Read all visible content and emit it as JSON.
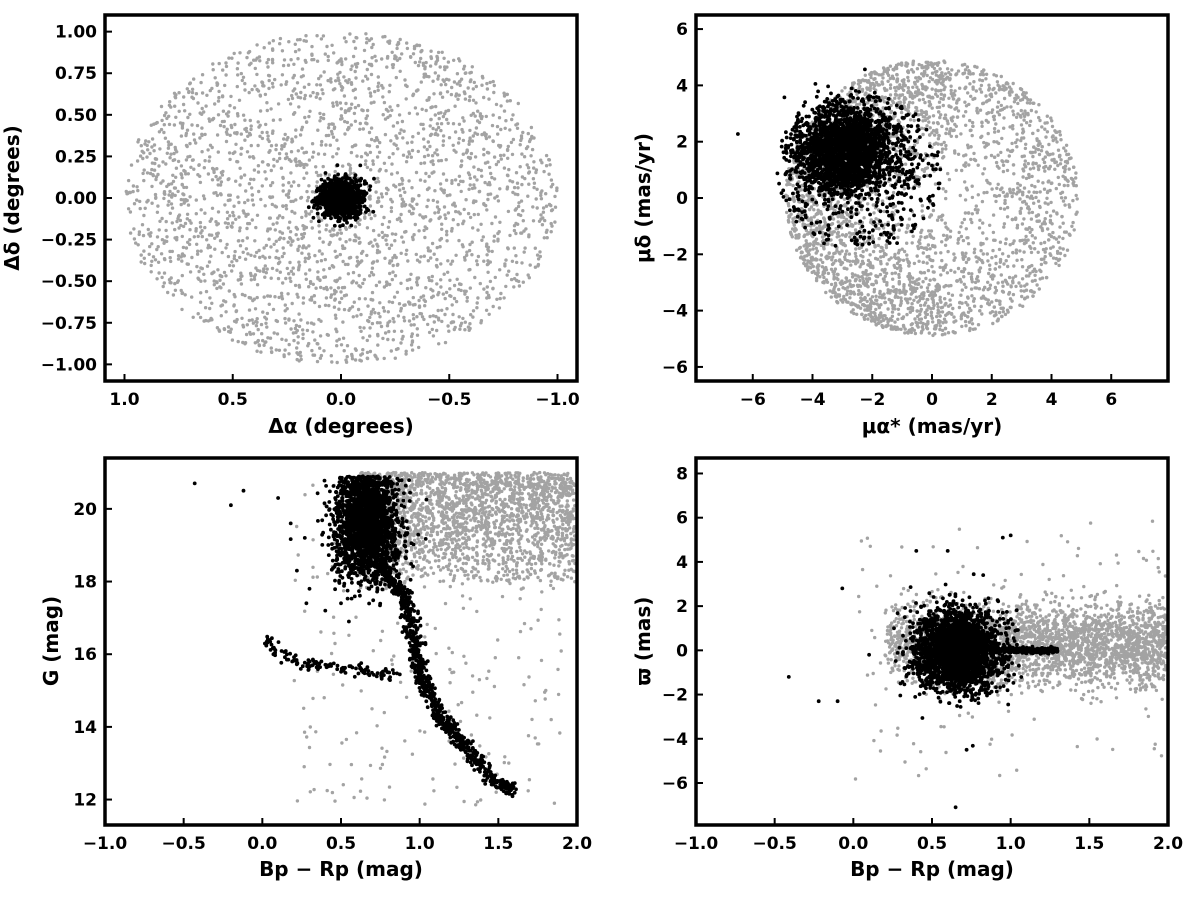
{
  "figure": {
    "background": "#ffffff",
    "colors": {
      "field": "#a3a3a3",
      "member": "#000000",
      "frame": "#000000"
    }
  },
  "chart_data": [
    {
      "id": "sky",
      "type": "scatter",
      "xlabel": "Δα (degrees)",
      "ylabel": "Δδ (degrees)",
      "xlim": [
        1.09,
        -1.09
      ],
      "ylim": [
        -1.1,
        1.1
      ],
      "x_ticks": [
        1.0,
        0.5,
        0.0,
        -0.5,
        -1.0
      ],
      "x_tick_labels": [
        "1.0",
        "0.5",
        "0.0",
        "−0.5",
        "−1.0"
      ],
      "y_ticks": [
        -1.0,
        -0.75,
        -0.5,
        -0.25,
        0.0,
        0.25,
        0.5,
        0.75,
        1.0
      ],
      "y_tick_labels": [
        "−1.00",
        "−0.75",
        "−0.50",
        "−0.25",
        "0.00",
        "0.25",
        "0.50",
        "0.75",
        "1.00"
      ],
      "grid": false,
      "series": [
        {
          "role": "field",
          "distribution": "uniform-disk",
          "center": [
            0,
            0
          ],
          "radius": 1.0,
          "count": 2600
        },
        {
          "role": "member",
          "distribution": "gaussian",
          "center": [
            0,
            0
          ],
          "sigma": [
            0.045,
            0.055
          ],
          "count": 1300
        }
      ]
    },
    {
      "id": "proper-motion",
      "type": "scatter",
      "xlabel": "μα* (mas/yr)",
      "ylabel": "μδ (mas/yr)",
      "xlim": [
        -7.9,
        7.9
      ],
      "ylim": [
        -6.5,
        6.5
      ],
      "x_ticks": [
        -6,
        -4,
        -2,
        0,
        2,
        4,
        6
      ],
      "x_tick_labels": [
        "−6",
        "−4",
        "−2",
        "0",
        "2",
        "4",
        "6"
      ],
      "y_ticks": [
        -6,
        -4,
        -2,
        0,
        2,
        4,
        6
      ],
      "y_tick_labels": [
        "−6",
        "−4",
        "−2",
        "0",
        "2",
        "4",
        "6"
      ],
      "grid": false,
      "series": [
        {
          "role": "field",
          "distribution": "disk-edge-weighted",
          "center": [
            0,
            0
          ],
          "radius": 4.9,
          "count": 4500
        },
        {
          "role": "member",
          "distribution": "gaussian",
          "center": [
            -2.9,
            1.7
          ],
          "sigma": [
            0.75,
            0.75
          ],
          "count": 2200
        },
        {
          "role": "member",
          "distribution": "uniform-disk",
          "center": [
            -2.4,
            0.9
          ],
          "radius": 2.8,
          "count": 500
        }
      ]
    },
    {
      "id": "cmd",
      "type": "scatter",
      "xlabel": "Bp − Rp (mag)",
      "ylabel": "G (mag)",
      "xlim": [
        -1.0,
        2.0
      ],
      "ylim": [
        11.3,
        21.4
      ],
      "y_inverted": false,
      "x_ticks": [
        -1.0,
        -0.5,
        0.0,
        0.5,
        1.0,
        1.5,
        2.0
      ],
      "x_tick_labels": [
        "−1.0",
        "−0.5",
        "0.0",
        "0.5",
        "1.0",
        "1.5",
        "2.0"
      ],
      "y_ticks": [
        12,
        14,
        16,
        18,
        20
      ],
      "y_tick_labels": [
        "12",
        "14",
        "16",
        "18",
        "20"
      ],
      "grid": false,
      "series": [
        {
          "role": "field",
          "distribution": "cloud",
          "x_range": [
            0.6,
            2.0
          ],
          "y_range": [
            17.8,
            21.0
          ],
          "count": 2200
        },
        {
          "role": "field",
          "distribution": "scatter",
          "x_range": [
            0.2,
            1.9
          ],
          "y_range": [
            11.8,
            21.0
          ],
          "count": 250
        },
        {
          "role": "member",
          "distribution": "cloud",
          "center": [
            0.66,
            19.6
          ],
          "sigma": [
            0.1,
            0.75
          ],
          "count": 2200
        },
        {
          "role": "member",
          "distribution": "sequence",
          "points": [
            [
              0.73,
              18.6
            ],
            [
              0.82,
              18.0
            ],
            [
              0.9,
              17.6
            ],
            [
              0.94,
              17.0
            ],
            [
              0.97,
              16.2
            ],
            [
              1.0,
              15.6
            ],
            [
              1.05,
              15.0
            ],
            [
              1.12,
              14.4
            ],
            [
              1.2,
              13.9
            ],
            [
              1.32,
              13.3
            ],
            [
              1.45,
              12.6
            ],
            [
              1.6,
              12.2
            ]
          ],
          "count": 800
        },
        {
          "role": "member",
          "distribution": "sequence",
          "points": [
            [
              0.02,
              16.4
            ],
            [
              0.1,
              16.0
            ],
            [
              0.25,
              15.75
            ],
            [
              0.45,
              15.65
            ],
            [
              0.6,
              15.6
            ],
            [
              0.75,
              15.5
            ],
            [
              0.85,
              15.4
            ]
          ],
          "count": 130
        },
        {
          "role": "member",
          "distribution": "fixed",
          "points": [
            [
              -0.43,
              20.7
            ],
            [
              -0.12,
              20.5
            ],
            [
              -0.2,
              20.1
            ],
            [
              0.1,
              20.3
            ],
            [
              0.18,
              19.6
            ],
            [
              0.27,
              19.2
            ],
            [
              0.22,
              18.3
            ],
            [
              0.3,
              17.8
            ],
            [
              0.28,
              17.4
            ],
            [
              0.4,
              17.2
            ],
            [
              0.5,
              17.4
            ],
            [
              0.55,
              16.9
            ]
          ]
        }
      ]
    },
    {
      "id": "parallax",
      "type": "scatter",
      "xlabel": "Bp − Rp (mag)",
      "ylabel": "ϖ (mas)",
      "xlim": [
        -1.0,
        2.0
      ],
      "ylim": [
        -7.9,
        8.7
      ],
      "x_ticks": [
        -1.0,
        -0.5,
        0.0,
        0.5,
        1.0,
        1.5,
        2.0
      ],
      "x_tick_labels": [
        "−1.0",
        "−0.5",
        "0.0",
        "0.5",
        "1.0",
        "1.5",
        "2.0"
      ],
      "y_ticks": [
        -6,
        -4,
        -2,
        0,
        2,
        4,
        6,
        8
      ],
      "y_tick_labels": [
        "−6",
        "−4",
        "−2",
        "0",
        "2",
        "4",
        "6",
        "8"
      ],
      "grid": false,
      "series": [
        {
          "role": "field",
          "distribution": "band",
          "x_range": [
            0.2,
            2.0
          ],
          "center_y": 0.3,
          "sigma_y": 0.9,
          "count": 2600
        },
        {
          "role": "field",
          "distribution": "scatter",
          "x_range": [
            0.0,
            2.0
          ],
          "y_range": [
            -6.0,
            6.0
          ],
          "count": 120
        },
        {
          "role": "member",
          "distribution": "cloud",
          "center": [
            0.66,
            0.0
          ],
          "sigma": [
            0.13,
            0.9
          ],
          "count": 2600
        },
        {
          "role": "member",
          "distribution": "band",
          "x_range": [
            0.9,
            1.3
          ],
          "center_y": 0.0,
          "sigma_y": 0.06,
          "count": 250
        },
        {
          "role": "member",
          "distribution": "fixed",
          "points": [
            [
              -0.41,
              -1.2
            ],
            [
              -0.07,
              2.8
            ],
            [
              -0.22,
              -2.3
            ],
            [
              -0.1,
              -2.3
            ],
            [
              0.1,
              -0.2
            ],
            [
              0.65,
              -7.1
            ],
            [
              0.72,
              -4.5
            ],
            [
              0.6,
              4.5
            ],
            [
              0.95,
              5.1
            ],
            [
              1.0,
              5.2
            ],
            [
              0.4,
              4.5
            ],
            [
              0.3,
              -1.5
            ]
          ]
        }
      ]
    }
  ]
}
